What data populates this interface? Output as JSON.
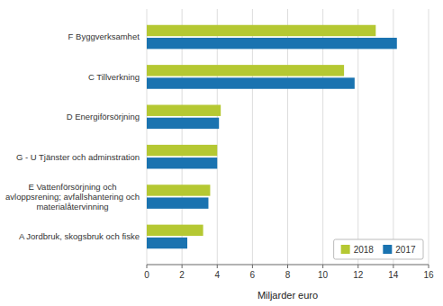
{
  "chart_data": {
    "type": "bar",
    "orientation": "horizontal",
    "categories": [
      "A Jordbruk, skogsbruk och fiske",
      "E Vattenförsörjning och\navloppsrening; avfallshantering och\nmaterialåtervinning",
      "G - U Tjänster och adminstration",
      "D Energiförsörjning",
      "C Tillverkning",
      "F Byggverksamhet"
    ],
    "series": [
      {
        "name": "2018",
        "color": "#b5c832",
        "values": [
          3.2,
          3.6,
          4.0,
          4.2,
          11.2,
          13.0
        ]
      },
      {
        "name": "2017",
        "color": "#1a73b0",
        "values": [
          2.3,
          3.5,
          4.0,
          4.1,
          11.8,
          14.2
        ]
      }
    ],
    "xlabel": "Miljarder euro",
    "xlim": [
      0,
      16
    ],
    "xticks": [
      0,
      2,
      4,
      6,
      8,
      10,
      12,
      14,
      16
    ],
    "grid": true,
    "legend": "lower right"
  }
}
